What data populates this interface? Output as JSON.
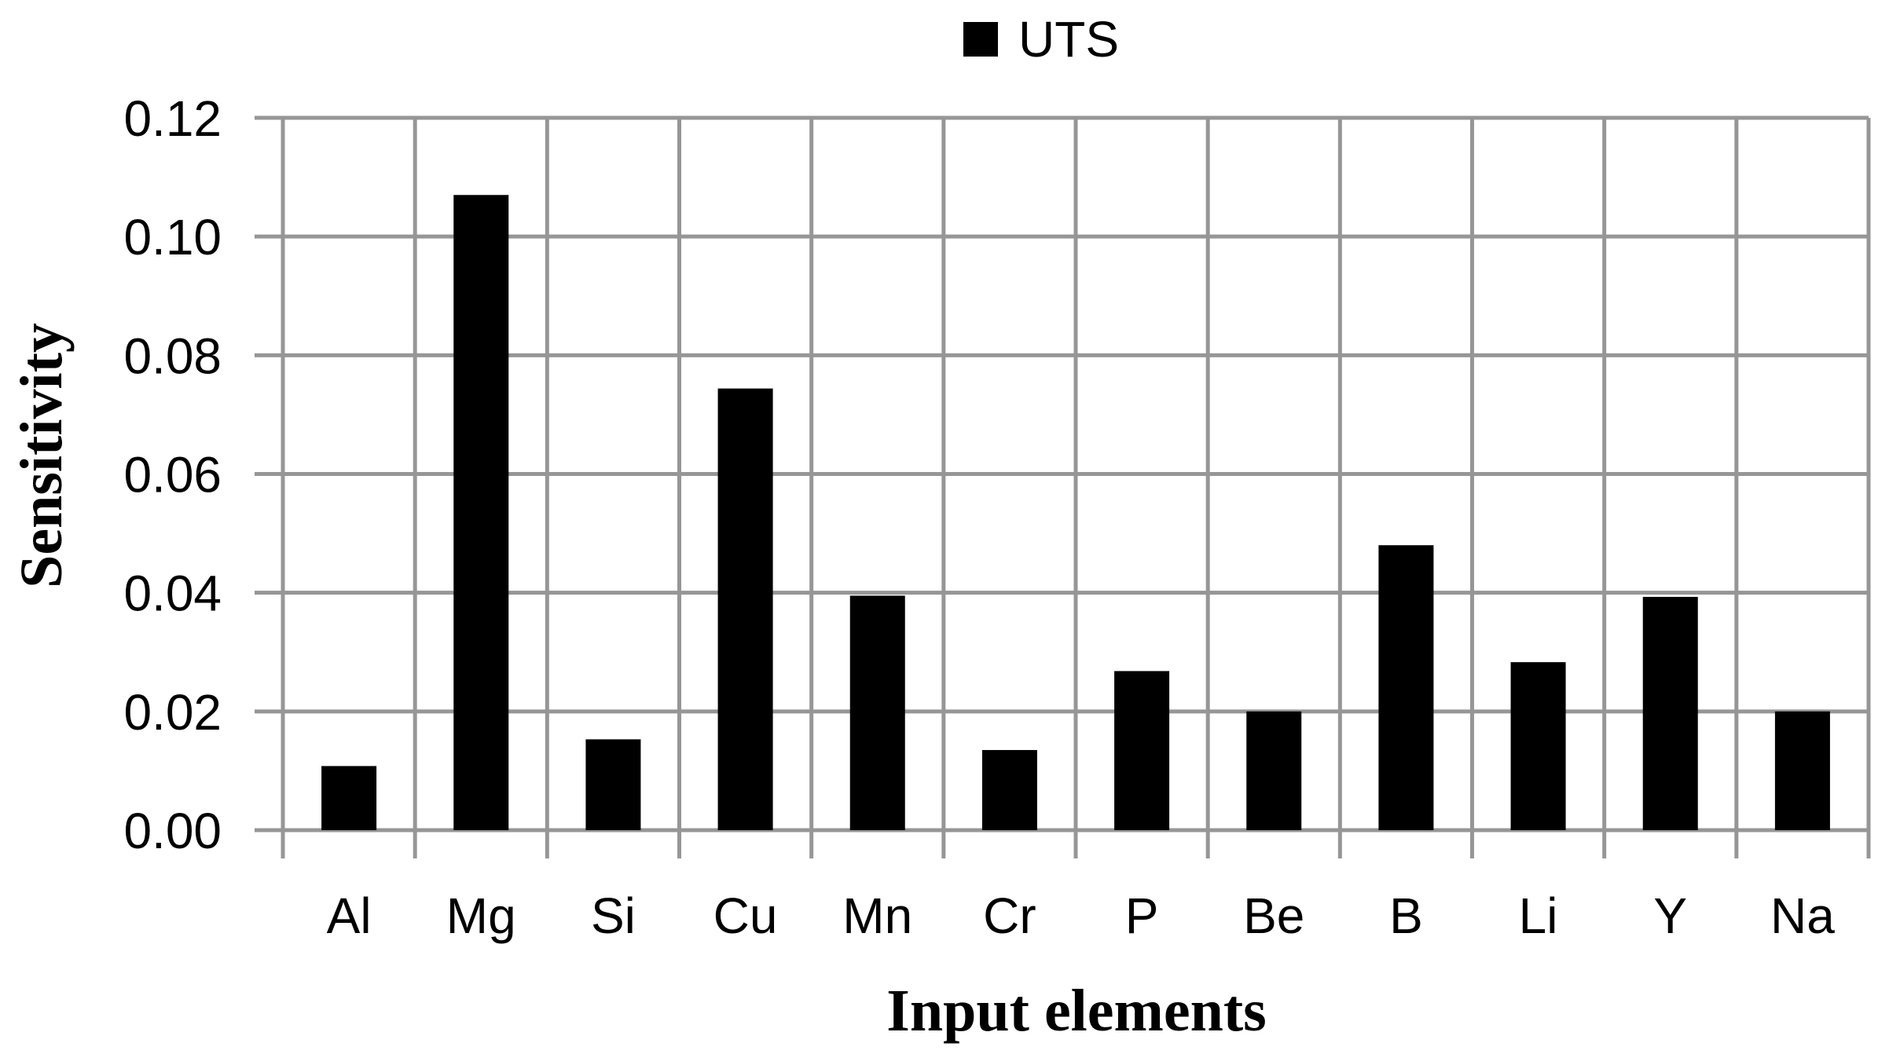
{
  "chart_data": {
    "type": "bar",
    "title": "",
    "xlabel": "Input elements",
    "ylabel": "Sensitivity",
    "categories": [
      "Al",
      "Mg",
      "Si",
      "Cu",
      "Mn",
      "Cr",
      "P",
      "Be",
      "B",
      "Li",
      "Y",
      "Na"
    ],
    "series": [
      {
        "name": "UTS",
        "values": [
          0.0108,
          0.107,
          0.0153,
          0.0744,
          0.0395,
          0.0135,
          0.0268,
          0.02,
          0.048,
          0.0283,
          0.0393,
          0.02
        ]
      }
    ],
    "ylim": [
      0,
      0.12
    ],
    "yticks": [
      "0.00",
      "0.02",
      "0.04",
      "0.06",
      "0.08",
      "0.10",
      "0.12"
    ],
    "grid": true,
    "legend": "top-center",
    "colors": {
      "bar": "#000000",
      "grid": "#969696"
    }
  }
}
